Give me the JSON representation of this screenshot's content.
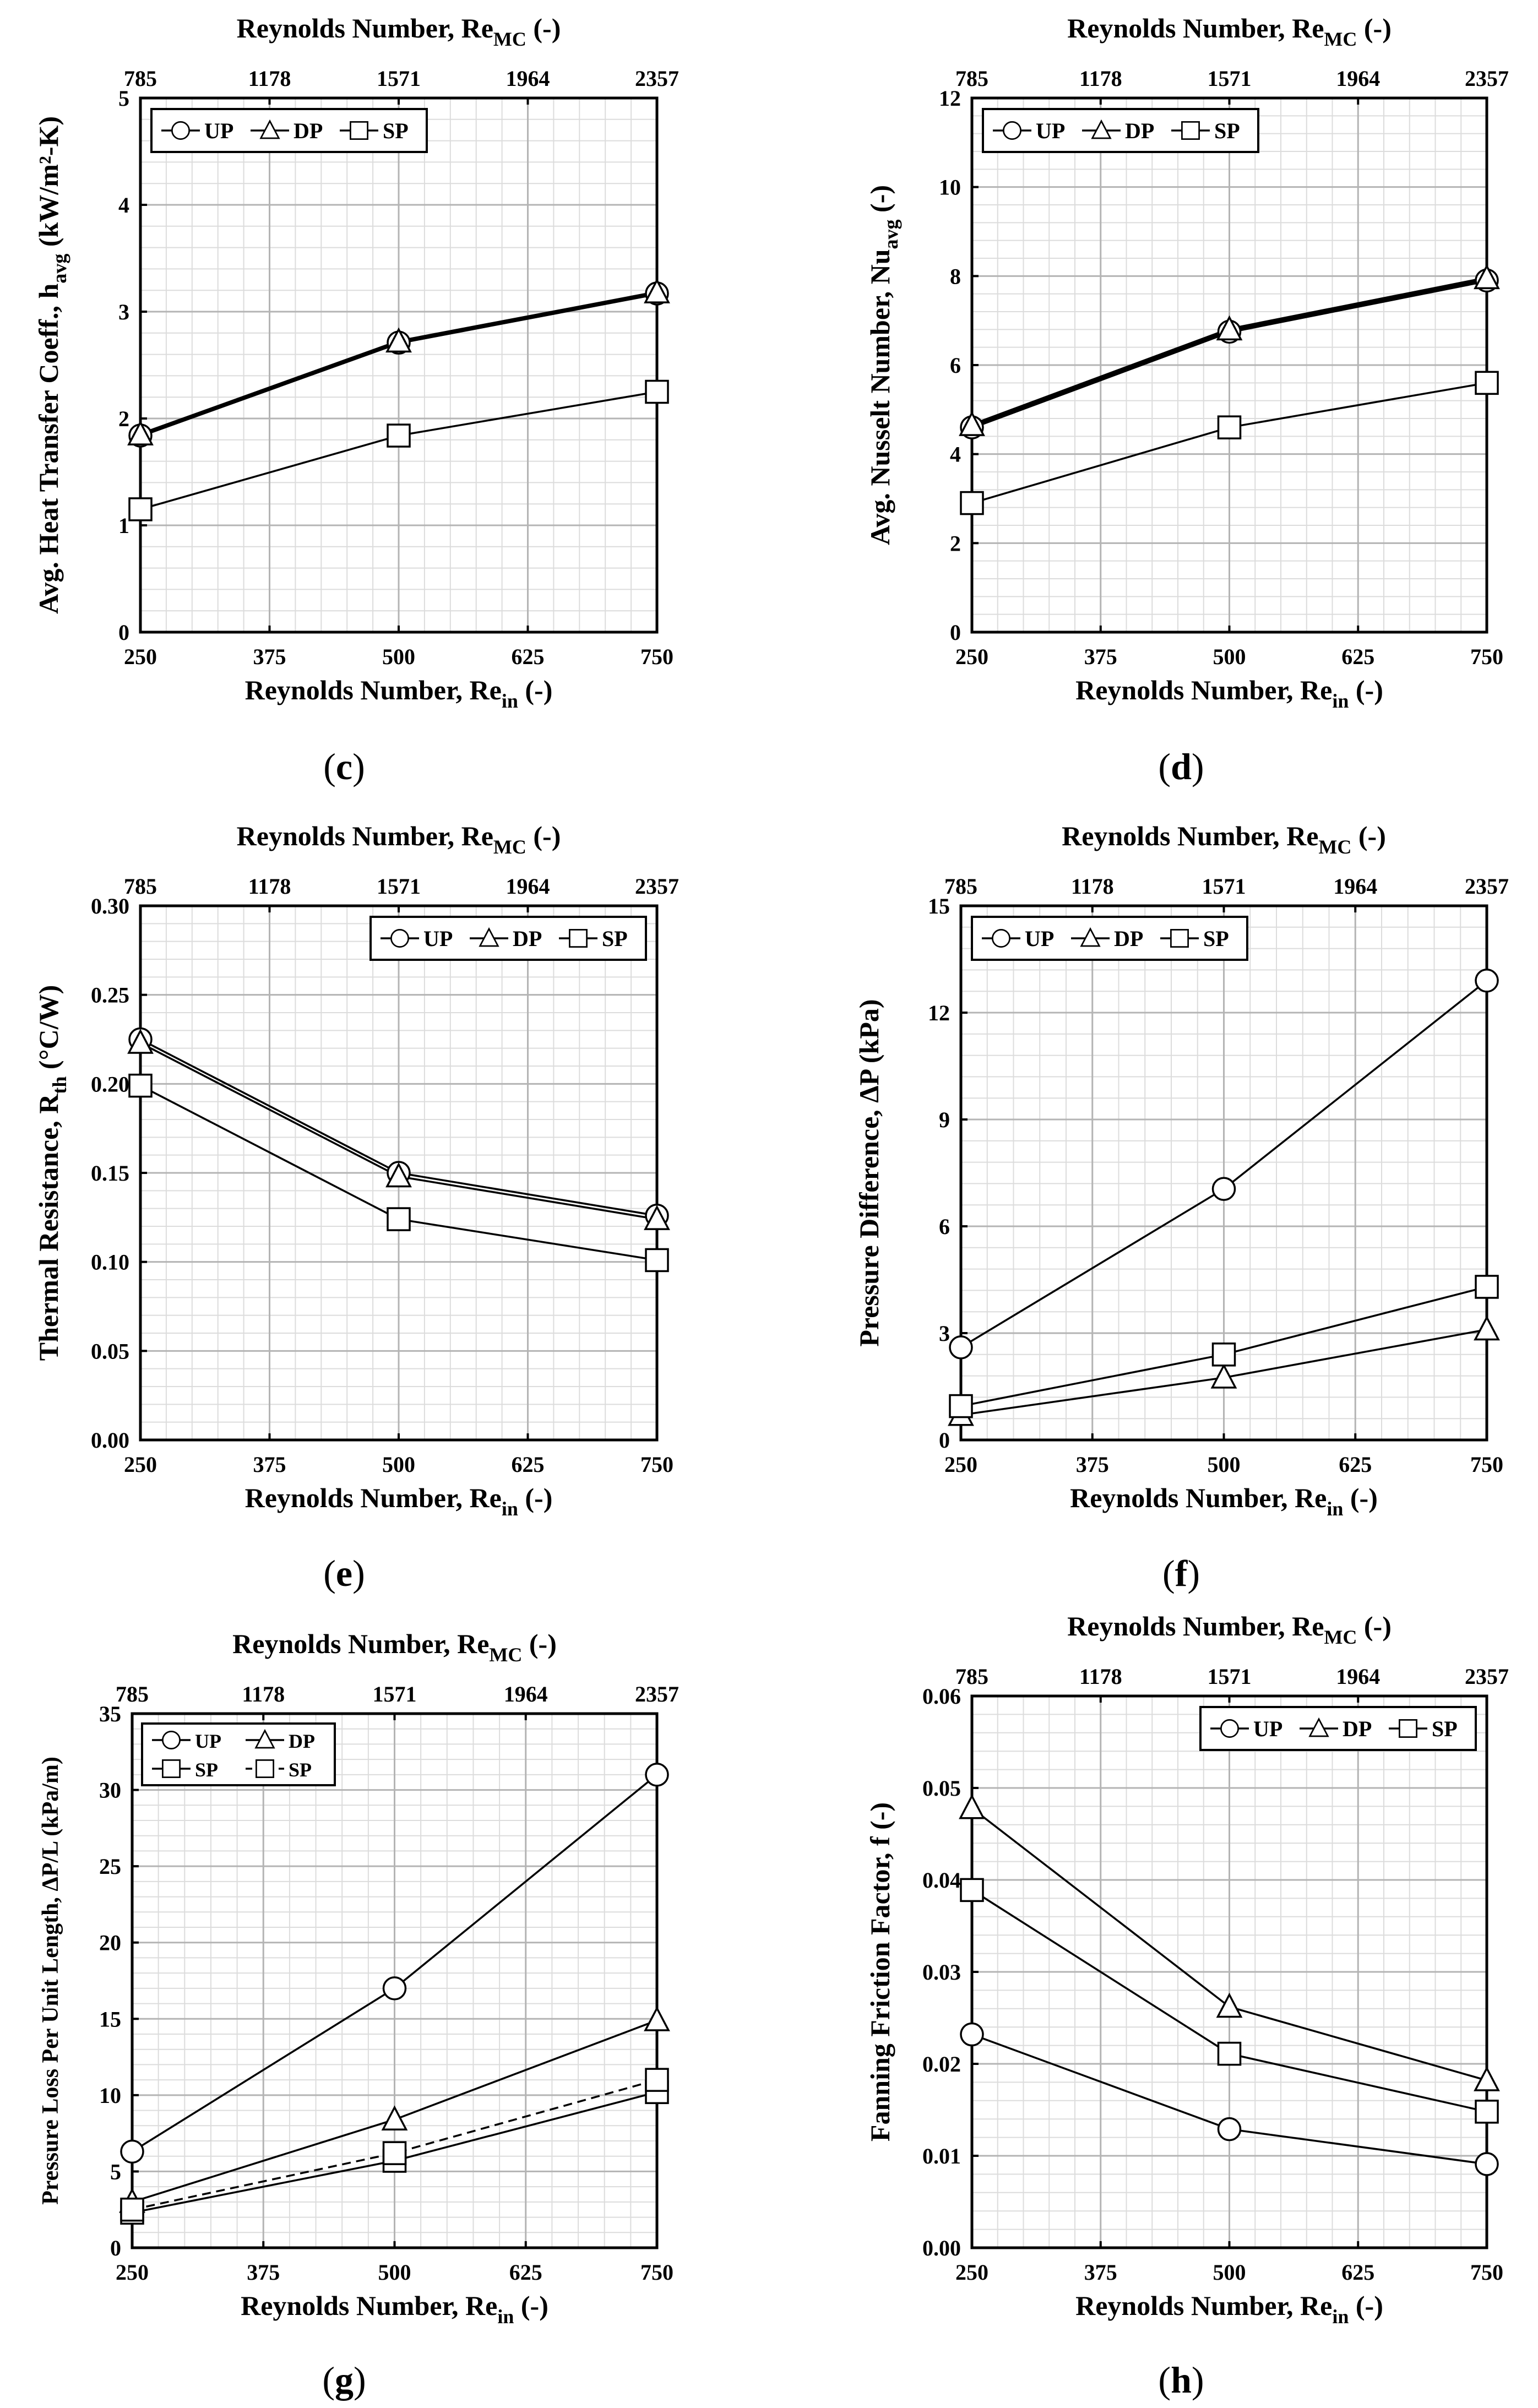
{
  "chart_data": [
    {
      "id": "c",
      "type": "line",
      "panel_label": "c",
      "xlabel": "Reynolds Number, Re",
      "xlabel_sub": "in",
      "xlabel_tail": " (-)",
      "x2label": "Reynolds Number, Re",
      "x2label_sub": "MC",
      "x2label_tail": " (-)",
      "ylabel": "Avg. Heat Transfer Coeff., h",
      "ylabel_sub": "avg",
      "ylabel_tail": " (kW/m²-K)",
      "xlim": [
        250,
        750
      ],
      "xticks": [
        "250",
        "375",
        "500",
        "625",
        "750"
      ],
      "x2ticks": [
        "785",
        "1178",
        "1571",
        "1964",
        "2357"
      ],
      "ylim": [
        0,
        5
      ],
      "yticks": [
        "0",
        "1",
        "2",
        "3",
        "4",
        "5"
      ],
      "legend": {
        "position": "top-left",
        "entries": [
          {
            "label": "UP",
            "marker": "circle",
            "dash": false
          },
          {
            "label": "DP",
            "marker": "triangle",
            "dash": false
          },
          {
            "label": "SP",
            "marker": "square",
            "dash": false
          }
        ]
      },
      "series": [
        {
          "name": "UP",
          "marker": "circle",
          "thick": true,
          "x": [
            250,
            500,
            750
          ],
          "y": [
            1.84,
            2.71,
            3.17
          ]
        },
        {
          "name": "DP",
          "marker": "triangle",
          "thick": true,
          "x": [
            250,
            500,
            750
          ],
          "y": [
            1.85,
            2.72,
            3.18
          ]
        },
        {
          "name": "SP",
          "marker": "square",
          "thick": false,
          "x": [
            250,
            500,
            750
          ],
          "y": [
            1.15,
            1.84,
            2.25
          ]
        }
      ]
    },
    {
      "id": "d",
      "type": "line",
      "panel_label": "d",
      "xlabel": "Reynolds Number, Re",
      "xlabel_sub": "in",
      "xlabel_tail": " (-)",
      "x2label": "Reynolds Number, Re",
      "x2label_sub": "MC",
      "x2label_tail": " (-)",
      "ylabel": "Avg. Nusselt Number, Nu",
      "ylabel_sub": "avg",
      "ylabel_tail": " (-)",
      "xlim": [
        250,
        750
      ],
      "xticks": [
        "250",
        "375",
        "500",
        "625",
        "750"
      ],
      "x2ticks": [
        "785",
        "1178",
        "1571",
        "1964",
        "2357"
      ],
      "ylim": [
        0,
        12
      ],
      "yticks": [
        "0",
        "2",
        "4",
        "6",
        "8",
        "10",
        "12"
      ],
      "legend": {
        "position": "top-left",
        "entries": [
          {
            "label": "UP",
            "marker": "circle",
            "dash": false
          },
          {
            "label": "DP",
            "marker": "triangle",
            "dash": false
          },
          {
            "label": "SP",
            "marker": "square",
            "dash": false
          }
        ]
      },
      "series": [
        {
          "name": "UP",
          "marker": "circle",
          "thick": true,
          "x": [
            250,
            500,
            750
          ],
          "y": [
            4.6,
            6.75,
            7.9
          ]
        },
        {
          "name": "DP",
          "marker": "triangle",
          "thick": true,
          "x": [
            250,
            500,
            750
          ],
          "y": [
            4.65,
            6.8,
            7.95
          ]
        },
        {
          "name": "SP",
          "marker": "square",
          "thick": false,
          "x": [
            250,
            500,
            750
          ],
          "y": [
            2.9,
            4.6,
            5.6
          ]
        }
      ]
    },
    {
      "id": "e",
      "type": "line",
      "panel_label": "e",
      "xlabel": "Reynolds Number, Re",
      "xlabel_sub": "in",
      "xlabel_tail": " (-)",
      "x2label": "Reynolds Number, Re",
      "x2label_sub": "MC",
      "x2label_tail": " (-)",
      "ylabel": "Thermal Resistance, R",
      "ylabel_sub": "th",
      "ylabel_tail": " (°C/W)",
      "xlim": [
        250,
        750
      ],
      "xticks": [
        "250",
        "375",
        "500",
        "625",
        "750"
      ],
      "x2ticks": [
        "785",
        "1178",
        "1571",
        "1964",
        "2357"
      ],
      "ylim": [
        0,
        0.3
      ],
      "yticks": [
        "0.00",
        "0.05",
        "0.10",
        "0.15",
        "0.20",
        "0.25",
        "0.30"
      ],
      "legend": {
        "position": "top-right",
        "entries": [
          {
            "label": "UP",
            "marker": "circle",
            "dash": false
          },
          {
            "label": "DP",
            "marker": "triangle",
            "dash": false
          },
          {
            "label": "SP",
            "marker": "square",
            "dash": false
          }
        ]
      },
      "series": [
        {
          "name": "UP",
          "marker": "circle",
          "thick": false,
          "x": [
            250,
            500,
            750
          ],
          "y": [
            0.225,
            0.15,
            0.126
          ]
        },
        {
          "name": "DP",
          "marker": "triangle",
          "thick": false,
          "x": [
            250,
            500,
            750
          ],
          "y": [
            0.223,
            0.148,
            0.124
          ]
        },
        {
          "name": "SP",
          "marker": "square",
          "thick": false,
          "x": [
            250,
            500,
            750
          ],
          "y": [
            0.199,
            0.124,
            0.101
          ]
        }
      ]
    },
    {
      "id": "f",
      "type": "line",
      "panel_label": "f",
      "xlabel": "Reynolds Number, Re",
      "xlabel_sub": "in",
      "xlabel_tail": " (-)",
      "x2label": "Reynolds Number, Re",
      "x2label_sub": "MC",
      "x2label_tail": " (-)",
      "ylabel": "Pressure Difference, ΔP (kPa)",
      "ylabel_sub": "",
      "ylabel_tail": "",
      "xlim": [
        250,
        750
      ],
      "xticks": [
        "250",
        "375",
        "500",
        "625",
        "750"
      ],
      "x2ticks": [
        "785",
        "1178",
        "1571",
        "1964",
        "2357"
      ],
      "ylim": [
        0,
        15
      ],
      "yticks": [
        "0",
        "3",
        "6",
        "9",
        "12",
        "15"
      ],
      "legend": {
        "position": "top-left",
        "entries": [
          {
            "label": "UP",
            "marker": "circle",
            "dash": false
          },
          {
            "label": "DP",
            "marker": "triangle",
            "dash": false
          },
          {
            "label": "SP",
            "marker": "square",
            "dash": false
          }
        ]
      },
      "series": [
        {
          "name": "UP",
          "marker": "circle",
          "thick": false,
          "x": [
            250,
            500,
            750
          ],
          "y": [
            2.6,
            7.05,
            12.9
          ]
        },
        {
          "name": "DP",
          "marker": "triangle",
          "thick": false,
          "x": [
            250,
            500,
            750
          ],
          "y": [
            0.7,
            1.75,
            3.1
          ]
        },
        {
          "name": "SP",
          "marker": "square",
          "thick": false,
          "x": [
            250,
            500,
            750
          ],
          "y": [
            0.95,
            2.4,
            4.3
          ]
        }
      ]
    },
    {
      "id": "g",
      "type": "line",
      "panel_label": "g",
      "xlabel": "Reynolds Number, Re",
      "xlabel_sub": "in",
      "xlabel_tail": " (-)",
      "x2label": "Reynolds Number, Re",
      "x2label_sub": "MC",
      "x2label_tail": " (-)",
      "ylabel": "Pressure Loss Per Unit Length, ΔP/L (kPa/m)",
      "ylabel_sub": "",
      "ylabel_tail": "",
      "xlim": [
        250,
        750
      ],
      "xticks": [
        "250",
        "375",
        "500",
        "625",
        "750"
      ],
      "x2ticks": [
        "785",
        "1178",
        "1571",
        "1964",
        "2357"
      ],
      "ylim": [
        0,
        35
      ],
      "yticks": [
        "0",
        "5",
        "10",
        "15",
        "20",
        "25",
        "30",
        "35"
      ],
      "legend": {
        "position": "top-left",
        "entries": [
          {
            "label": "UP",
            "marker": "circle",
            "dash": false
          },
          {
            "label": "DP",
            "marker": "triangle",
            "dash": false
          },
          {
            "label": "SP",
            "marker": "square",
            "dash": false
          },
          {
            "label": "SP",
            "marker": "square",
            "dash": true
          }
        ]
      },
      "series": [
        {
          "name": "UP",
          "marker": "circle",
          "thick": false,
          "dash": false,
          "x": [
            250,
            500,
            750
          ],
          "y": [
            6.3,
            17.0,
            31.0
          ]
        },
        {
          "name": "DP",
          "marker": "triangle",
          "thick": false,
          "dash": false,
          "x": [
            250,
            500,
            750
          ],
          "y": [
            3.0,
            8.4,
            14.9
          ]
        },
        {
          "name": "SP",
          "marker": "square",
          "thick": false,
          "dash": false,
          "x": [
            250,
            500,
            750
          ],
          "y": [
            2.3,
            5.7,
            10.2
          ]
        },
        {
          "name": "SP (dashed)",
          "marker": "square",
          "thick": false,
          "dash": true,
          "x": [
            250,
            500,
            750
          ],
          "y": [
            2.5,
            6.2,
            11.0
          ]
        }
      ]
    },
    {
      "id": "h",
      "type": "line",
      "panel_label": "h",
      "xlabel": "Reynolds Number, Re",
      "xlabel_sub": "in",
      "xlabel_tail": " (-)",
      "x2label": "Reynolds Number, Re",
      "x2label_sub": "MC",
      "x2label_tail": " (-)",
      "ylabel": "Fanning Friction Factor, f (-)",
      "ylabel_sub": "",
      "ylabel_tail": "",
      "xlim": [
        250,
        750
      ],
      "xticks": [
        "250",
        "375",
        "500",
        "625",
        "750"
      ],
      "x2ticks": [
        "785",
        "1178",
        "1571",
        "1964",
        "2357"
      ],
      "ylim": [
        0,
        0.06
      ],
      "yticks": [
        "0.00",
        "0.01",
        "0.02",
        "0.03",
        "0.04",
        "0.05",
        "0.06"
      ],
      "legend": {
        "position": "top-right",
        "entries": [
          {
            "label": "UP",
            "marker": "circle",
            "dash": false
          },
          {
            "label": "DP",
            "marker": "triangle",
            "dash": false
          },
          {
            "label": "SP",
            "marker": "square",
            "dash": false
          }
        ]
      },
      "series": [
        {
          "name": "UP",
          "marker": "circle",
          "thick": false,
          "x": [
            250,
            500,
            750
          ],
          "y": [
            0.0232,
            0.0129,
            0.0091
          ]
        },
        {
          "name": "DP",
          "marker": "triangle",
          "thick": false,
          "x": [
            250,
            500,
            750
          ],
          "y": [
            0.0478,
            0.0262,
            0.0182
          ]
        },
        {
          "name": "SP",
          "marker": "square",
          "thick": false,
          "x": [
            250,
            500,
            750
          ],
          "y": [
            0.0389,
            0.0211,
            0.0148
          ]
        }
      ]
    }
  ]
}
